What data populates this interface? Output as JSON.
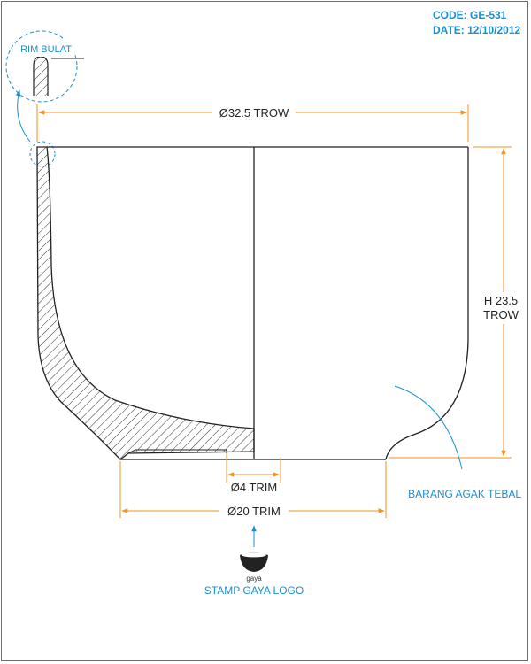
{
  "header": {
    "code": "CODE: GE-531",
    "date": "DATE: 12/10/2012"
  },
  "detail": {
    "label": "RIM BULAT"
  },
  "dimensions": {
    "diameter_top": "Ø32.5 TROW",
    "height_line1": "H 23.5",
    "height_line2": "TROW",
    "inner_foot": "Ø4 TRIM",
    "foot_diameter": "Ø20 TRIM"
  },
  "notes": {
    "thickness": "BARANG AGAK TEBAL",
    "stamp_word": "gaya",
    "stamp": "STAMP GAYA LOGO"
  },
  "colors": {
    "label_blue": "#1a8fce",
    "dimension_orange": "#f29221",
    "outline": "#222222"
  }
}
